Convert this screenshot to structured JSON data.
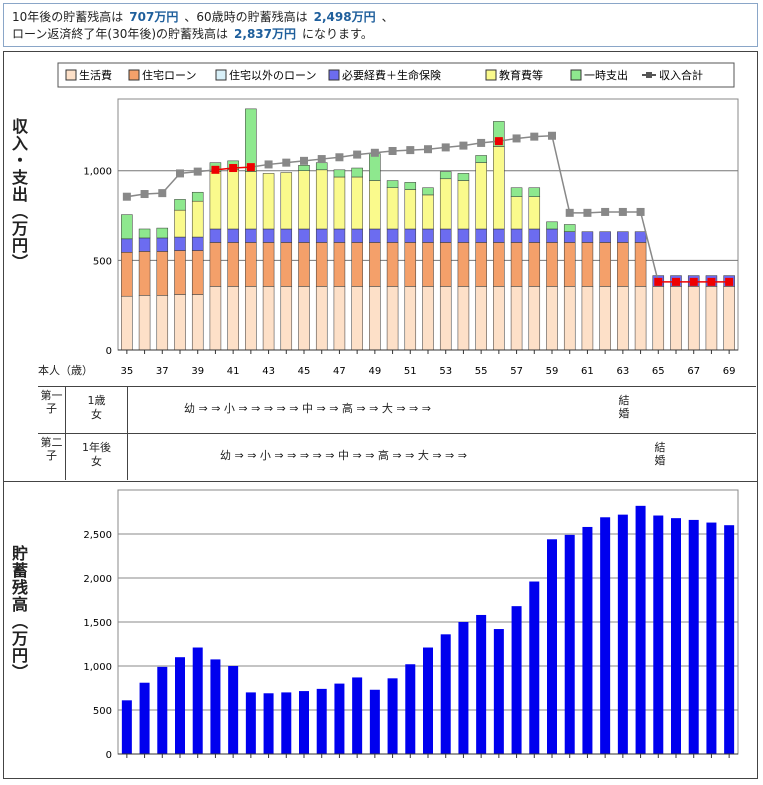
{
  "summary": {
    "part1": "10年後の貯蓄残高は",
    "value1": "707万円",
    "sep1": "、60歳時の貯蓄残高は",
    "value2": "2,498万円",
    "sep2": "、",
    "part3": "ローン返済終了年(30年後)の貯蓄残高は",
    "value3": "2,837万円",
    "tail": "になります。"
  },
  "upper_ylabel": "収入・支出（万円）",
  "lower_ylabel": "貯蓄残高（万円）",
  "age_label": "本人（歳）",
  "children": [
    {
      "label": "第一子",
      "info1": "1歳",
      "info2": "女",
      "stages": "幼 ⇒ ⇒ 小 ⇒ ⇒ ⇒ ⇒ ⇒ 中 ⇒ ⇒ 高 ⇒ ⇒ 大 ⇒ ⇒ ⇒",
      "marriage": "結婚"
    },
    {
      "label": "第二子",
      "info1": "1年後",
      "info2": "女",
      "stages": "幼 ⇒ ⇒ 小 ⇒ ⇒ ⇒ ⇒ ⇒ 中 ⇒ ⇒ 高 ⇒ ⇒ 大 ⇒ ⇒ ⇒",
      "marriage": "結婚"
    }
  ],
  "colors": {
    "living": "#fde0c8",
    "housing_loan": "#f4a06a",
    "other_loan": "#d8f0f8",
    "expenses_insurance": "#6c6cf0",
    "education": "#fafa8c",
    "one_time": "#8ee88e",
    "income_line": "#888888",
    "income_deficit": "#ee0000",
    "savings_bar": "#0000ee"
  },
  "chart_data": [
    {
      "type": "bar",
      "stacked": true,
      "title": "",
      "xlabel": "本人（歳）",
      "ylabel": "収入・支出（万円）",
      "x": [
        35,
        36,
        37,
        38,
        39,
        40,
        41,
        42,
        43,
        44,
        45,
        46,
        47,
        48,
        49,
        50,
        51,
        52,
        53,
        54,
        55,
        56,
        57,
        58,
        59,
        60,
        61,
        62,
        63,
        64,
        65,
        66,
        67,
        68,
        69
      ],
      "x_tick_labels": [
        "35",
        "37",
        "39",
        "41",
        "43",
        "45",
        "47",
        "49",
        "51",
        "53",
        "55",
        "57",
        "59",
        "61",
        "63",
        "65",
        "67",
        "69"
      ],
      "ylim": [
        0,
        1400
      ],
      "y_ticks": [
        0,
        500,
        1000
      ],
      "y_tick_labels": [
        "0",
        "500",
        "1,000"
      ],
      "legend_position": "top",
      "series": [
        {
          "name": "生活費",
          "values": [
            300,
            305,
            305,
            310,
            310,
            355,
            355,
            355,
            355,
            355,
            355,
            355,
            355,
            355,
            355,
            355,
            355,
            355,
            355,
            355,
            355,
            355,
            355,
            355,
            355,
            355,
            355,
            355,
            355,
            355,
            355,
            355,
            355,
            355,
            355
          ]
        },
        {
          "name": "住宅ローン",
          "values": [
            245,
            245,
            245,
            245,
            245,
            245,
            245,
            245,
            245,
            245,
            245,
            245,
            245,
            245,
            245,
            245,
            245,
            245,
            245,
            245,
            245,
            245,
            245,
            245,
            245,
            245,
            245,
            245,
            245,
            245,
            0,
            0,
            0,
            0,
            0
          ]
        },
        {
          "name": "住宅以外のローン",
          "values": [
            0,
            0,
            0,
            0,
            0,
            0,
            0,
            0,
            0,
            0,
            0,
            0,
            0,
            0,
            0,
            0,
            0,
            0,
            0,
            0,
            0,
            0,
            0,
            0,
            0,
            0,
            0,
            0,
            0,
            0,
            0,
            0,
            0,
            0,
            0
          ]
        },
        {
          "name": "必要経費＋生命保険",
          "values": [
            75,
            75,
            75,
            75,
            75,
            75,
            75,
            75,
            75,
            75,
            75,
            75,
            75,
            75,
            75,
            75,
            75,
            75,
            75,
            75,
            75,
            75,
            75,
            75,
            75,
            60,
            60,
            60,
            60,
            60,
            60,
            60,
            60,
            60,
            60
          ]
        },
        {
          "name": "教育費等",
          "values": [
            0,
            0,
            0,
            150,
            200,
            320,
            330,
            320,
            310,
            315,
            325,
            330,
            290,
            290,
            270,
            230,
            220,
            190,
            280,
            270,
            370,
            460,
            180,
            180,
            0,
            0,
            0,
            0,
            0,
            0,
            0,
            0,
            0,
            0,
            0
          ]
        },
        {
          "name": "一時支出",
          "values": [
            135,
            50,
            55,
            60,
            50,
            50,
            50,
            350,
            0,
            0,
            30,
            40,
            40,
            50,
            150,
            40,
            40,
            40,
            40,
            40,
            40,
            140,
            50,
            50,
            40,
            40,
            0,
            0,
            0,
            0,
            0,
            0,
            0,
            0,
            0
          ]
        },
        {
          "name": "収入合計",
          "type": "line",
          "values": [
            855,
            870,
            875,
            985,
            995,
            1005,
            1015,
            1020,
            1035,
            1045,
            1055,
            1065,
            1075,
            1090,
            1100,
            1110,
            1115,
            1120,
            1130,
            1140,
            1155,
            1165,
            1180,
            1190,
            1195,
            765,
            765,
            770,
            770,
            770,
            380,
            380,
            380,
            380,
            380
          ]
        }
      ]
    },
    {
      "type": "bar",
      "title": "",
      "xlabel": "",
      "ylabel": "貯蓄残高（万円）",
      "x": [
        35,
        36,
        37,
        38,
        39,
        40,
        41,
        42,
        43,
        44,
        45,
        46,
        47,
        48,
        49,
        50,
        51,
        52,
        53,
        54,
        55,
        56,
        57,
        58,
        59,
        60,
        61,
        62,
        63,
        64,
        65,
        66,
        67,
        68,
        69
      ],
      "ylim": [
        0,
        3000
      ],
      "y_ticks": [
        0,
        500,
        1000,
        1500,
        2000,
        2500
      ],
      "y_tick_labels": [
        "0",
        "500",
        "1,000",
        "1,500",
        "2,000",
        "2,500"
      ],
      "series": [
        {
          "name": "貯蓄残高",
          "values": [
            610,
            810,
            990,
            1100,
            1210,
            1075,
            1000,
            700,
            690,
            700,
            715,
            740,
            800,
            870,
            730,
            860,
            1020,
            1210,
            1360,
            1500,
            1580,
            1420,
            1680,
            1960,
            2440,
            2490,
            2580,
            2690,
            2720,
            2820,
            2710,
            2680,
            2660,
            2630,
            2600
          ]
        }
      ]
    }
  ]
}
